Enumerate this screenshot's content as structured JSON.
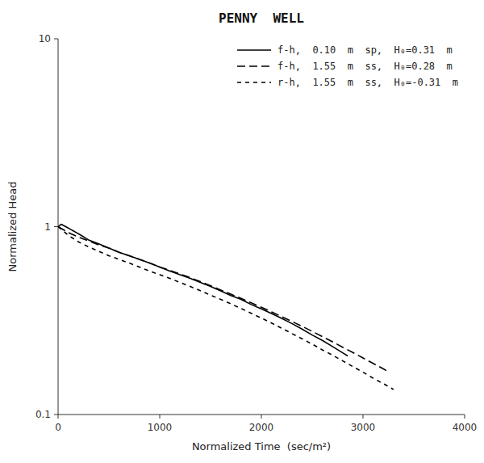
{
  "chart_data": {
    "type": "line",
    "title": "PENNY  WELL",
    "xlabel": "Normalized Time  (sec/m²)",
    "ylabel": "Normalized Head",
    "log": "y",
    "grid": false,
    "legend": "upper right",
    "xlim": [
      0,
      4000
    ],
    "ylim": [
      0.1,
      10
    ],
    "xticks": [
      0,
      1000,
      2000,
      3000,
      4000
    ],
    "yticks": [
      0.1,
      1,
      10
    ],
    "series": [
      {
        "name": "f-h,  0.10  m  sp,  H₀=0.31  m",
        "color": "#000000",
        "line_style": "solid",
        "x": [
          0,
          30,
          60,
          90,
          120,
          150,
          180,
          210,
          240,
          270,
          300,
          400,
          500,
          600,
          700,
          800,
          900,
          1000,
          1100,
          1200,
          1300,
          1400,
          1500,
          1600,
          1700,
          1800,
          1900,
          2000,
          2100,
          2200,
          2300,
          2400,
          2500,
          2600,
          2700,
          2800,
          2850
        ],
        "values": [
          1.0,
          1.03,
          1.01,
          0.99,
          0.97,
          0.95,
          0.93,
          0.91,
          0.89,
          0.87,
          0.85,
          0.81,
          0.77,
          0.73,
          0.7,
          0.67,
          0.64,
          0.61,
          0.58,
          0.555,
          0.53,
          0.505,
          0.48,
          0.455,
          0.43,
          0.41,
          0.385,
          0.365,
          0.345,
          0.325,
          0.305,
          0.285,
          0.265,
          0.248,
          0.23,
          0.213,
          0.205
        ]
      },
      {
        "name": "f-h,  1.55  m  ss,  H₀=0.28  m",
        "color": "#000000",
        "line_style": "dashed",
        "x": [
          0,
          100,
          200,
          300,
          400,
          500,
          600,
          700,
          800,
          900,
          1000,
          1100,
          1200,
          1300,
          1400,
          1500,
          1600,
          1700,
          1800,
          1900,
          2000,
          2100,
          2200,
          2300,
          2400,
          2500,
          2600,
          2700,
          2800,
          2900,
          3000,
          3100,
          3200,
          3250
        ],
        "values": [
          1.0,
          0.93,
          0.88,
          0.84,
          0.8,
          0.77,
          0.73,
          0.7,
          0.67,
          0.64,
          0.61,
          0.585,
          0.56,
          0.535,
          0.51,
          0.485,
          0.46,
          0.437,
          0.415,
          0.393,
          0.372,
          0.352,
          0.332,
          0.313,
          0.295,
          0.277,
          0.26,
          0.244,
          0.228,
          0.214,
          0.2,
          0.187,
          0.175,
          0.169
        ]
      },
      {
        "name": "r-h,  1.55  m  ss,  H₀=-0.31  m",
        "color": "#000000",
        "line_style": "shortdash",
        "x": [
          0,
          100,
          200,
          300,
          400,
          500,
          600,
          700,
          800,
          900,
          1000,
          1100,
          1200,
          1300,
          1400,
          1500,
          1600,
          1700,
          1800,
          1900,
          2000,
          2100,
          2200,
          2300,
          2400,
          2500,
          2600,
          2700,
          2800,
          2900,
          3000,
          3100,
          3200,
          3300
        ],
        "values": [
          1.0,
          0.9,
          0.83,
          0.78,
          0.74,
          0.7,
          0.67,
          0.64,
          0.61,
          0.58,
          0.555,
          0.53,
          0.505,
          0.48,
          0.456,
          0.432,
          0.41,
          0.388,
          0.367,
          0.346,
          0.326,
          0.307,
          0.288,
          0.27,
          0.253,
          0.237,
          0.221,
          0.207,
          0.193,
          0.18,
          0.168,
          0.156,
          0.146,
          0.136
        ]
      }
    ]
  }
}
